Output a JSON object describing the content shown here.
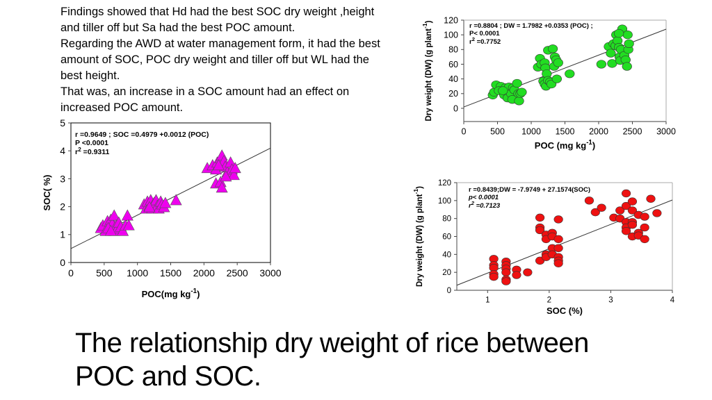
{
  "intro_lines": [
    "Findings showed that Hd had the best SOC dry weight ,height",
    "and tiller off but Sa had the best POC amount.",
    "Regarding the AWD at water management form, it had the best",
    "amount of SOC, POC dry weight and tiller off but WL had the",
    "best height.",
    "That was, an increase in a SOC amount had an effect on",
    "increased POC amount."
  ],
  "title_lines": [
    "The relationship dry weight of rice between",
    "POC and SOC."
  ],
  "chart_data": [
    {
      "type": "scatter",
      "id": "soc-vs-poc",
      "marker": "triangle",
      "color": "#ee00ee",
      "xlabel": "POC(mg kg",
      "xlabel_sup": "-1",
      "xlabel_end": ")",
      "ylabel": "SOC( %)",
      "ylabel_sup": "",
      "ylabel_end": "",
      "xlim": [
        0,
        3000
      ],
      "ylim": [
        0,
        5
      ],
      "xticks": [
        0,
        500,
        1000,
        1500,
        2000,
        2500,
        3000
      ],
      "yticks": [
        0,
        1,
        2,
        3,
        4,
        5
      ],
      "regression": {
        "intercept": 0.4979,
        "slope": 0.0012
      },
      "annotation": [
        "r =0.9649 ; SOC =0.4979 +0.0012 (POC)",
        "P <0.0001"
      ],
      "r2_label": " =0.9311",
      "annotation_italic": false,
      "points": [
        [
          450,
          1.2
        ],
        [
          480,
          1.3
        ],
        [
          520,
          1.1
        ],
        [
          550,
          1.45
        ],
        [
          580,
          1.2
        ],
        [
          600,
          1.5
        ],
        [
          620,
          1.35
        ],
        [
          650,
          1.65
        ],
        [
          650,
          1.1
        ],
        [
          680,
          1.3
        ],
        [
          700,
          1.2
        ],
        [
          720,
          1.4
        ],
        [
          750,
          1.25
        ],
        [
          780,
          1.1
        ],
        [
          820,
          1.3
        ],
        [
          850,
          1.65
        ],
        [
          870,
          1.3
        ],
        [
          560,
          1.2
        ],
        [
          600,
          1.1
        ],
        [
          1100,
          2.05
        ],
        [
          1130,
          1.9
        ],
        [
          1150,
          2.15
        ],
        [
          1180,
          2.0
        ],
        [
          1200,
          2.2
        ],
        [
          1220,
          1.9
        ],
        [
          1250,
          2.1
        ],
        [
          1280,
          2.2
        ],
        [
          1300,
          2.0
        ],
        [
          1320,
          1.9
        ],
        [
          1350,
          2.15
        ],
        [
          1370,
          2.05
        ],
        [
          1400,
          1.95
        ],
        [
          1420,
          2.1
        ],
        [
          1580,
          2.2
        ],
        [
          1180,
          1.95
        ],
        [
          2050,
          3.35
        ],
        [
          2130,
          3.45
        ],
        [
          2180,
          3.3
        ],
        [
          2200,
          3.55
        ],
        [
          2250,
          3.7
        ],
        [
          2270,
          3.8
        ],
        [
          2300,
          3.6
        ],
        [
          2320,
          3.4
        ],
        [
          2350,
          3.2
        ],
        [
          2400,
          3.55
        ],
        [
          2420,
          3.3
        ],
        [
          2450,
          3.1
        ],
        [
          2470,
          3.35
        ],
        [
          2180,
          2.8
        ],
        [
          2250,
          2.85
        ],
        [
          2270,
          2.65
        ],
        [
          2330,
          3.05
        ],
        [
          2220,
          3.45
        ]
      ]
    },
    {
      "type": "scatter",
      "id": "dw-vs-poc",
      "marker": "circle",
      "color": "#22dd22",
      "xlabel": "POC (mg kg",
      "xlabel_sup": "-1",
      "xlabel_end": ")",
      "ylabel": "Dry weight  (DW) (g plant",
      "ylabel_sup": "-1",
      "ylabel_end": ")",
      "xlim": [
        0,
        3000
      ],
      "ylim": [
        -18,
        120
      ],
      "xticks": [
        0,
        500,
        1000,
        1500,
        2000,
        2500,
        3000
      ],
      "yticks": [
        0,
        20,
        40,
        60,
        80,
        100,
        120
      ],
      "regression": {
        "intercept": 1.7982,
        "slope": 0.0353
      },
      "annotation": [
        "r =0.8804 ; DW = 1.7982 +0.0353 (POC) ;",
        "P< 0.0001"
      ],
      "r2_label": " =0.7752",
      "annotation_italic": false,
      "points": [
        [
          430,
          18
        ],
        [
          450,
          22
        ],
        [
          480,
          32
        ],
        [
          550,
          30
        ],
        [
          520,
          24
        ],
        [
          600,
          18
        ],
        [
          620,
          28
        ],
        [
          650,
          14
        ],
        [
          670,
          29
        ],
        [
          700,
          20
        ],
        [
          720,
          12
        ],
        [
          730,
          28
        ],
        [
          750,
          25
        ],
        [
          790,
          34
        ],
        [
          810,
          20
        ],
        [
          820,
          10
        ],
        [
          840,
          20
        ],
        [
          860,
          22
        ],
        [
          580,
          24
        ],
        [
          1100,
          56
        ],
        [
          1130,
          68
        ],
        [
          1150,
          60
        ],
        [
          1180,
          37
        ],
        [
          1200,
          33
        ],
        [
          1200,
          62
        ],
        [
          1210,
          55
        ],
        [
          1220,
          30
        ],
        [
          1230,
          47
        ],
        [
          1250,
          79
        ],
        [
          1250,
          38
        ],
        [
          1280,
          36
        ],
        [
          1300,
          33
        ],
        [
          1320,
          81
        ],
        [
          1340,
          57
        ],
        [
          1350,
          70
        ],
        [
          1370,
          66
        ],
        [
          1380,
          40
        ],
        [
          1400,
          62
        ],
        [
          1570,
          47
        ],
        [
          2040,
          60
        ],
        [
          2150,
          84
        ],
        [
          2180,
          75
        ],
        [
          2200,
          61
        ],
        [
          2220,
          88
        ],
        [
          2250,
          85
        ],
        [
          2260,
          100
        ],
        [
          2280,
          92
        ],
        [
          2300,
          83
        ],
        [
          2310,
          70
        ],
        [
          2320,
          65
        ],
        [
          2330,
          80
        ],
        [
          2350,
          108
        ],
        [
          2380,
          72
        ],
        [
          2400,
          66
        ],
        [
          2420,
          57
        ],
        [
          2430,
          100
        ],
        [
          2440,
          80
        ],
        [
          2450,
          88
        ],
        [
          2300,
          102
        ]
      ]
    },
    {
      "type": "scatter",
      "id": "dw-vs-soc",
      "marker": "circle",
      "color": "#ee1111",
      "xlabel": "SOC (%)",
      "xlabel_sup": "",
      "xlabel_end": "",
      "ylabel": "Dry weight (DW) (g plant",
      "ylabel_sup": "-1",
      "ylabel_end": ")",
      "xlim": [
        0.5,
        4
      ],
      "ylim": [
        0,
        120
      ],
      "xticks": [
        1,
        2,
        3,
        4
      ],
      "yticks": [
        0,
        20,
        40,
        60,
        80,
        100,
        120
      ],
      "regression": {
        "intercept": -7.9749,
        "slope": 27.1574
      },
      "annotation": [
        "r =0.8439;DW = -7.9749 + 27.1574(SOC)",
        "p< 0.0001"
      ],
      "r2_label": " =0.7123",
      "annotation_italic": true,
      "points": [
        [
          1.1,
          35
        ],
        [
          1.1,
          28
        ],
        [
          1.1,
          25
        ],
        [
          1.1,
          18
        ],
        [
          1.1,
          15
        ],
        [
          1.3,
          32
        ],
        [
          1.3,
          28
        ],
        [
          1.3,
          24
        ],
        [
          1.3,
          20
        ],
        [
          1.3,
          12
        ],
        [
          1.3,
          10
        ],
        [
          1.47,
          23
        ],
        [
          1.47,
          17
        ],
        [
          1.65,
          20
        ],
        [
          1.85,
          81
        ],
        [
          1.85,
          70
        ],
        [
          1.85,
          67
        ],
        [
          1.85,
          33
        ],
        [
          1.95,
          62
        ],
        [
          1.95,
          57
        ],
        [
          1.95,
          40
        ],
        [
          1.95,
          37
        ],
        [
          2.05,
          64
        ],
        [
          2.05,
          60
        ],
        [
          2.05,
          47
        ],
        [
          2.05,
          40
        ],
        [
          2.15,
          79
        ],
        [
          2.15,
          57
        ],
        [
          2.15,
          47
        ],
        [
          2.15,
          37
        ],
        [
          2.15,
          33
        ],
        [
          2.15,
          30
        ],
        [
          2.65,
          100
        ],
        [
          2.75,
          87
        ],
        [
          2.85,
          92
        ],
        [
          3.05,
          81
        ],
        [
          3.15,
          89
        ],
        [
          3.15,
          80
        ],
        [
          3.25,
          108
        ],
        [
          3.25,
          94
        ],
        [
          3.25,
          76
        ],
        [
          3.25,
          70
        ],
        [
          3.25,
          66
        ],
        [
          3.35,
          99
        ],
        [
          3.35,
          89
        ],
        [
          3.35,
          76
        ],
        [
          3.35,
          73
        ],
        [
          3.35,
          60
        ],
        [
          3.45,
          84
        ],
        [
          3.45,
          64
        ],
        [
          3.45,
          61
        ],
        [
          3.55,
          82
        ],
        [
          3.55,
          70
        ],
        [
          3.55,
          57
        ],
        [
          3.65,
          102
        ],
        [
          3.75,
          86
        ]
      ]
    }
  ]
}
